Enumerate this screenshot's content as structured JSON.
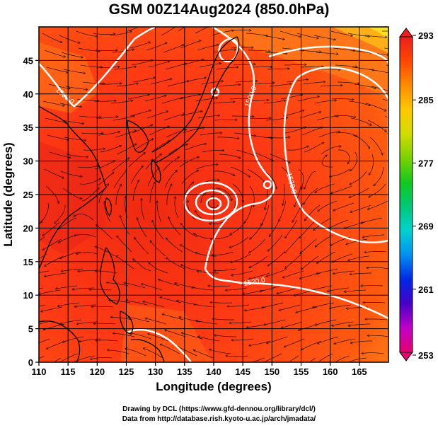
{
  "title": "GSM 00Z14Aug2024 (850.0hPa)",
  "xlabel": "Longitude (degrees)",
  "ylabel": "Latitude  (degrees)",
  "credit_line1": "Drawing by DCL (https://www.gfd-dennou.org/library/dcl/)",
  "credit_line2": "Data from http://database.rish.kyoto-u.ac.jp/arch/jmadata/",
  "chart_data": {
    "type": "heatmap",
    "xlim": [
      110,
      170
    ],
    "ylim": [
      0,
      50
    ],
    "x_ticks": [
      "110",
      "115",
      "120",
      "125",
      "130",
      "135",
      "140",
      "145",
      "150",
      "155",
      "160",
      "165"
    ],
    "y_ticks": [
      "0",
      "5",
      "10",
      "15",
      "20",
      "25",
      "30",
      "35",
      "40",
      "45"
    ],
    "grid": true,
    "colorbar": {
      "min": 253,
      "max": 293,
      "tick_labels": [
        "293",
        "285",
        "277",
        "269",
        "261",
        "253"
      ],
      "tick_values": [
        293,
        285,
        277,
        269,
        261,
        253
      ],
      "colors": [
        "#e8006e",
        "#c000c8",
        "#4800c8",
        "#0028e6",
        "#0090f0",
        "#00d2d2",
        "#00c87a",
        "#12c81e",
        "#78d200",
        "#d2dc00",
        "#ffc800",
        "#ff8c00",
        "#ff4600",
        "#f01e1e"
      ]
    },
    "contour_labels": [
      "1500.0",
      "1530.0",
      "1520.0",
      "1500.0"
    ],
    "overlays": [
      "wind-streamlines",
      "geopotential-height-contours",
      "coastlines"
    ]
  }
}
